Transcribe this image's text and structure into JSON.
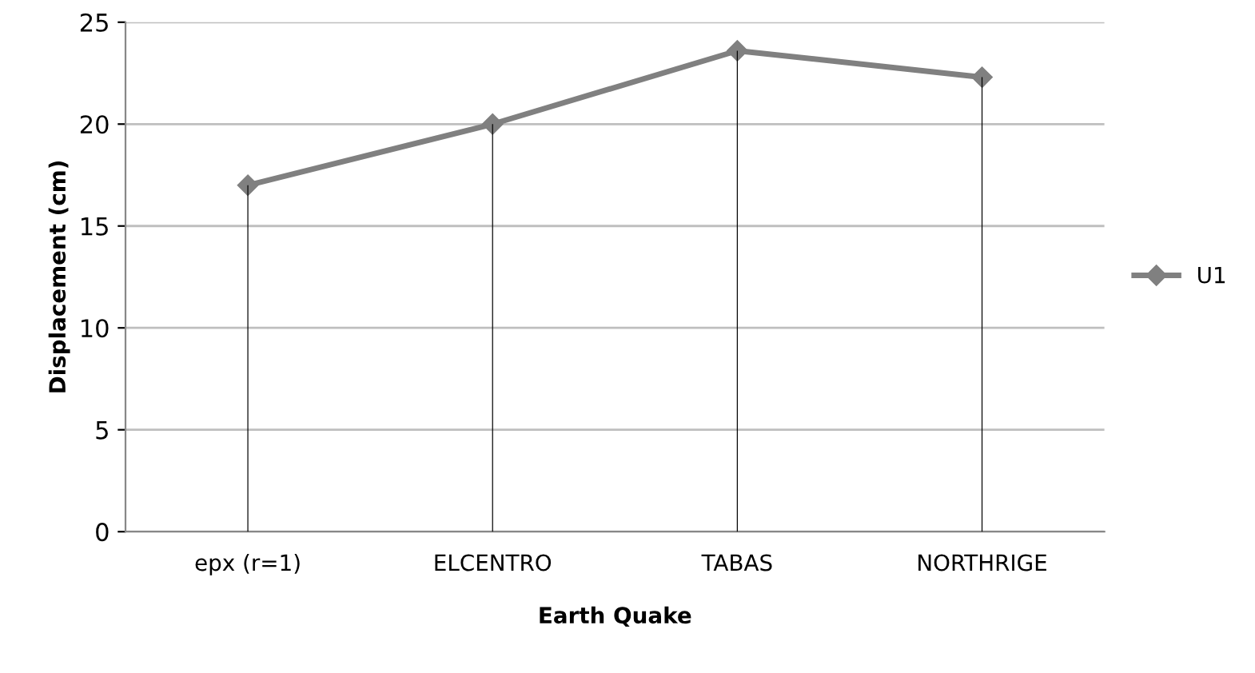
{
  "chart_data": {
    "type": "line",
    "xlabel": "Earth Quake",
    "ylabel": "Displacement (cm)",
    "categories": [
      "epx (r=1)",
      "ELCENTRO",
      "TABAS",
      "NORTHRIGE"
    ],
    "series": [
      {
        "type": "bar",
        "color": "#000000",
        "values": [
          17.0,
          20.0,
          23.6,
          22.3
        ]
      },
      {
        "name": "U1",
        "color": "#808080",
        "values": [
          17.0,
          20.0,
          23.6,
          22.3
        ]
      }
    ],
    "ylim": [
      0,
      25
    ],
    "yticks": [
      0,
      5,
      10,
      15,
      20,
      25
    ],
    "grid": "y",
    "legend": "right",
    "marker": "diamond",
    "line_style": "solid"
  }
}
